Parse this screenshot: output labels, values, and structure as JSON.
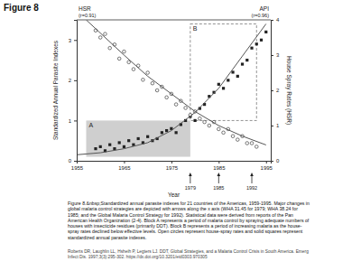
{
  "header": {
    "title": "Figure 8"
  },
  "caption": "Figure 8.&nbsp;Standardized annual parasite indexes for 21 countries of the Americas, 1959-1995. Major changes in global malaria control strategies are depicted with arrows along the x axis (WHA 31.45 for 1979; WHA 38.24 for 1985; and the Global Malaria Control Strategy for 1992). Statistical data were derived from reports of the Pan American Health Organization (2-4). Block A represents a period of malaria control by spraying adequate numbers of houses with insecticide residues (primarily DDT). Block B represents a period of increasing malaria as the house-spray rates declined below effective levels. Open circles represent house-spray rates and solid squares represent standardized annual parasite indexes.",
  "citation": "Roberts DR, Laughlin LL, Hsheih P, Legters LJ. DDT, Global Strategies, and a Malaria Control Crisis in South America. Emerg Infect Dis. 1997;3(3):295-302. https://dx.doi.org/10.3201/eid0303.970305",
  "chart_data": {
    "type": "scatter",
    "x_label": "Year",
    "y_label": "Standardized Annual Parasite Indexes",
    "y2_label": "House Spray Rates (HSR)",
    "xlim": [
      1955,
      1996
    ],
    "xticks": [
      1955,
      1965,
      1975,
      1985,
      1995
    ],
    "ylim": [
      0,
      3.5
    ],
    "yticks": [
      0,
      1,
      2,
      3
    ],
    "y2lim": [
      0,
      4
    ],
    "y2ticks": [
      0,
      1,
      2,
      3,
      4
    ],
    "events": [
      1979,
      1985,
      1992
    ],
    "annotations": [
      "(r=0.91)",
      "(r=0.96)"
    ],
    "regions": [
      {
        "label": "A",
        "x": [
          1957,
          1979
        ],
        "y": [
          0.1,
          1.0
        ]
      },
      {
        "label": "B",
        "x": [
          1979,
          1993
        ],
        "y": [
          1.0,
          3.4
        ]
      }
    ],
    "series": [
      {
        "type": "scatter",
        "marker": "square",
        "color": "#222222",
        "x": [
          1959,
          1960,
          1961,
          1962,
          1963,
          1964,
          1965,
          1966,
          1967,
          1968,
          1969,
          1970,
          1971,
          1972,
          1973,
          1974,
          1975,
          1976,
          1977,
          1978,
          1979,
          1980,
          1981,
          1982,
          1983,
          1984,
          1985,
          1986,
          1987,
          1988,
          1989,
          1990,
          1991,
          1992,
          1993,
          1994,
          1995
        ],
        "values": [
          0.3,
          0.35,
          0.25,
          0.4,
          0.3,
          0.45,
          0.35,
          0.5,
          0.4,
          0.55,
          0.45,
          0.6,
          0.5,
          0.55,
          0.7,
          0.75,
          0.8,
          0.7,
          0.9,
          1.0,
          1.1,
          1.0,
          1.3,
          1.4,
          1.6,
          1.7,
          1.9,
          1.8,
          2.0,
          2.2,
          2.1,
          2.4,
          2.5,
          2.8,
          2.9,
          3.0,
          3.2
        ]
      },
      {
        "type": "scatter",
        "marker": "open-circle",
        "color": "#222222",
        "axis": "y2",
        "x": [
          1959,
          1960,
          1961,
          1962,
          1963,
          1964,
          1965,
          1966,
          1967,
          1968,
          1969,
          1970,
          1971,
          1972,
          1973,
          1974,
          1975,
          1976,
          1977,
          1978,
          1979,
          1980,
          1981,
          1982,
          1983,
          1984,
          1985,
          1986,
          1987,
          1988,
          1989,
          1990,
          1991,
          1992,
          1993
        ],
        "values": [
          3.7,
          3.5,
          3.6,
          3.2,
          3.3,
          2.9,
          3.1,
          2.8,
          2.6,
          2.7,
          2.3,
          2.5,
          2.2,
          2.0,
          2.1,
          1.8,
          1.9,
          1.6,
          1.7,
          1.5,
          1.3,
          1.4,
          1.2,
          1.1,
          1.0,
          1.1,
          0.9,
          0.8,
          0.9,
          0.7,
          0.6,
          0.7,
          0.5,
          0.5,
          0.4
        ]
      },
      {
        "type": "line",
        "name": "API",
        "color": "#555555",
        "line_style": "solid",
        "x": [
          1955,
          1960,
          1965,
          1970,
          1975,
          1980,
          1985,
          1990,
          1995
        ],
        "values": [
          0.15,
          0.2,
          0.3,
          0.45,
          0.75,
          1.2,
          1.8,
          2.6,
          3.4
        ]
      },
      {
        "type": "line",
        "name": "HSR",
        "color": "#555555",
        "line_style": "solid",
        "axis": "y2",
        "x": [
          1957,
          1965,
          1970,
          1975,
          1980,
          1985,
          1990,
          1995
        ],
        "values": [
          4.0,
          3.0,
          2.4,
          1.9,
          1.4,
          1.0,
          0.7,
          0.45
        ]
      }
    ]
  }
}
